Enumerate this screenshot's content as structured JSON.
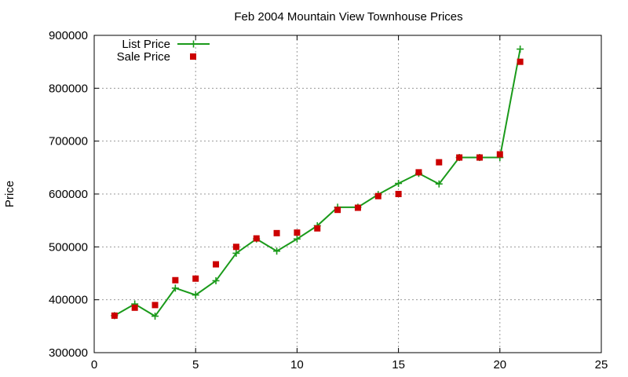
{
  "chart_data": {
    "type": "line",
    "title": "Feb 2004 Mountain View Townhouse Prices",
    "xlabel": "",
    "ylabel": "Price",
    "xlim": [
      0,
      25
    ],
    "ylim": [
      300000,
      900000
    ],
    "x_ticks": [
      0,
      5,
      10,
      15,
      20,
      25
    ],
    "x_tick_labels": [
      "0",
      "5",
      "10",
      "15",
      "20",
      "25"
    ],
    "y_ticks": [
      300000,
      400000,
      500000,
      600000,
      700000,
      800000,
      900000
    ],
    "y_tick_labels": [
      "300000",
      "400000",
      "500000",
      "600000",
      "700000",
      "800000",
      "900000"
    ],
    "grid": true,
    "legend_position": "top-left",
    "series": [
      {
        "name": "List Price",
        "style": "line-with-plus-markers",
        "color": "#1a9a1a",
        "x": [
          1,
          2,
          3,
          4,
          5,
          6,
          7,
          8,
          9,
          10,
          11,
          12,
          13,
          14,
          15,
          16,
          17,
          18,
          19,
          20,
          21
        ],
        "y": [
          370000,
          392000,
          369000,
          422000,
          409000,
          436000,
          488000,
          515000,
          492000,
          515000,
          540000,
          575000,
          575000,
          599000,
          620000,
          639000,
          619000,
          669000,
          669000,
          669000,
          874000
        ]
      },
      {
        "name": "Sale Price",
        "style": "square-markers",
        "color": "#cc0000",
        "x": [
          1,
          2,
          3,
          4,
          5,
          6,
          7,
          8,
          9,
          10,
          11,
          12,
          13,
          14,
          15,
          16,
          17,
          18,
          19,
          20,
          21
        ],
        "y": [
          370000,
          385000,
          390000,
          437000,
          440000,
          467000,
          500000,
          516000,
          526000,
          527000,
          535000,
          570000,
          574000,
          596000,
          600000,
          641000,
          660000,
          669000,
          669000,
          675000,
          850000
        ]
      }
    ]
  }
}
